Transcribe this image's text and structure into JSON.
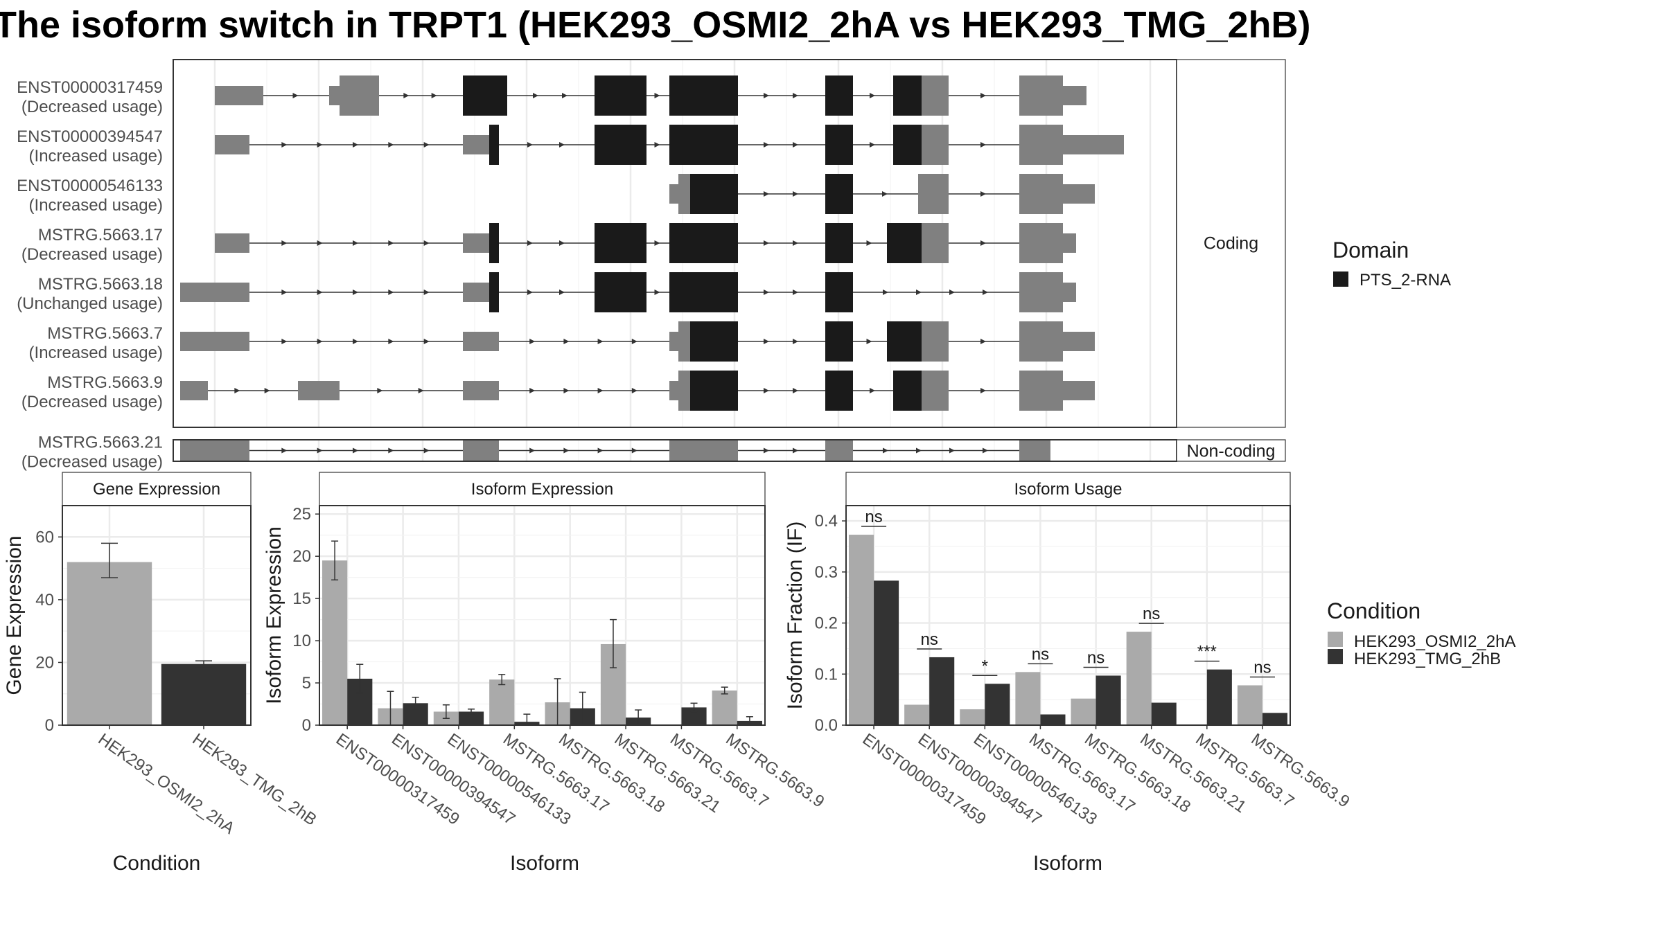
{
  "title": "The isoform switch in TRPT1 (HEK293_OSMI2_2hA vs HEK293_TMG_2hB)",
  "structure": {
    "facets": {
      "coding": "Coding",
      "noncoding": "Non-coding"
    },
    "transcripts": [
      {
        "id": "ENST00000317459",
        "usage": "(Decreased usage)",
        "group": "coding",
        "segments": [
          [
            60,
            130,
            "utr"
          ],
          [
            225,
            240,
            "utr"
          ],
          [
            240,
            297,
            "utr"
          ],
          [
            418,
            482,
            "cds"
          ],
          [
            608,
            683,
            "cds"
          ],
          [
            716,
            815,
            "cds"
          ],
          [
            941,
            981,
            "cds"
          ],
          [
            1039,
            1080,
            "cds"
          ],
          [
            1080,
            1119,
            "utr"
          ],
          [
            1221,
            1284,
            "utr"
          ],
          [
            1284,
            1318,
            "utrs"
          ]
        ]
      },
      {
        "id": "ENST00000394547",
        "usage": "(Increased usage)",
        "group": "coding",
        "segments": [
          [
            60,
            110,
            "utr"
          ],
          [
            418,
            456,
            "utr"
          ],
          [
            456,
            470,
            "cds"
          ],
          [
            608,
            683,
            "cds"
          ],
          [
            716,
            815,
            "cds"
          ],
          [
            941,
            981,
            "cds"
          ],
          [
            1039,
            1080,
            "cds"
          ],
          [
            1080,
            1119,
            "utr"
          ],
          [
            1221,
            1284,
            "utr"
          ],
          [
            1284,
            1372,
            "utrs"
          ]
        ]
      },
      {
        "id": "ENST00000546133",
        "usage": "(Increased usage)",
        "group": "coding",
        "segments": [
          [
            716,
            729,
            "utrs"
          ],
          [
            729,
            746,
            "utr"
          ],
          [
            746,
            815,
            "cds"
          ],
          [
            941,
            981,
            "cds"
          ],
          [
            1075,
            1119,
            "utr"
          ],
          [
            1221,
            1284,
            "utr"
          ],
          [
            1284,
            1330,
            "utrs"
          ]
        ]
      },
      {
        "id": "MSTRG.5663.17",
        "usage": "(Decreased usage)",
        "group": "coding",
        "segments": [
          [
            60,
            110,
            "utr"
          ],
          [
            418,
            456,
            "utr"
          ],
          [
            456,
            470,
            "cds"
          ],
          [
            608,
            683,
            "cds"
          ],
          [
            716,
            815,
            "cds"
          ],
          [
            941,
            981,
            "cds"
          ],
          [
            1030,
            1080,
            "cds"
          ],
          [
            1080,
            1119,
            "utr"
          ],
          [
            1221,
            1284,
            "utr"
          ],
          [
            1284,
            1303,
            "utrs"
          ]
        ]
      },
      {
        "id": "MSTRG.5663.18",
        "usage": "(Unchanged usage)",
        "group": "coding",
        "segments": [
          [
            10,
            110,
            "utr"
          ],
          [
            418,
            456,
            "utr"
          ],
          [
            456,
            470,
            "cds"
          ],
          [
            608,
            683,
            "cds"
          ],
          [
            716,
            815,
            "cds"
          ],
          [
            941,
            981,
            "cds"
          ],
          [
            1221,
            1284,
            "utr"
          ],
          [
            1284,
            1303,
            "utrs"
          ]
        ]
      },
      {
        "id": "MSTRG.5663.7",
        "usage": "(Increased usage)",
        "group": "coding",
        "segments": [
          [
            10,
            110,
            "utr"
          ],
          [
            418,
            470,
            "utr"
          ],
          [
            716,
            729,
            "utrs"
          ],
          [
            729,
            746,
            "utr"
          ],
          [
            746,
            815,
            "cds"
          ],
          [
            941,
            981,
            "cds"
          ],
          [
            1030,
            1080,
            "cds"
          ],
          [
            1080,
            1119,
            "utr"
          ],
          [
            1221,
            1284,
            "utr"
          ],
          [
            1284,
            1330,
            "utrs"
          ]
        ]
      },
      {
        "id": "MSTRG.5663.9",
        "usage": "(Decreased usage)",
        "group": "coding",
        "segments": [
          [
            10,
            50,
            "utr"
          ],
          [
            180,
            240,
            "utr"
          ],
          [
            418,
            470,
            "utr"
          ],
          [
            716,
            729,
            "utrs"
          ],
          [
            729,
            746,
            "utr"
          ],
          [
            746,
            815,
            "cds"
          ],
          [
            941,
            981,
            "cds"
          ],
          [
            1039,
            1080,
            "cds"
          ],
          [
            1080,
            1119,
            "utr"
          ],
          [
            1221,
            1284,
            "utr"
          ],
          [
            1284,
            1330,
            "utrs"
          ]
        ]
      },
      {
        "id": "MSTRG.5663.21",
        "usage": "(Decreased usage)",
        "group": "noncoding",
        "segments": [
          [
            10,
            110,
            "nc"
          ],
          [
            418,
            470,
            "nc"
          ],
          [
            716,
            815,
            "nc"
          ],
          [
            941,
            981,
            "nc"
          ],
          [
            1221,
            1266,
            "nc"
          ]
        ]
      }
    ]
  },
  "legend_domain": {
    "title": "Domain",
    "items": [
      {
        "label": "PTS_2-RNA",
        "color": "#1a1a1a"
      }
    ]
  },
  "legend_condition": {
    "title": "Condition",
    "items": [
      {
        "label": "HEK293_OSMI2_2hA",
        "color": "#aaaaaa"
      },
      {
        "label": "HEK293_TMG_2hB",
        "color": "#333333"
      }
    ]
  },
  "colors": {
    "utr": "#808080",
    "cds": "#1a1a1a",
    "noncoding": "#808080",
    "cond_a": "#aaaaaa",
    "cond_b": "#333333"
  },
  "chart_data": [
    {
      "type": "bar",
      "title": "Gene Expression",
      "xlabel": "Condition",
      "ylabel": "Gene Expression",
      "categories": [
        "HEK293_OSMI2_2hA",
        "HEK293_TMG_2hB"
      ],
      "values": [
        52,
        19.5
      ],
      "errors": [
        [
          47,
          58
        ],
        [
          18.7,
          20.5
        ]
      ],
      "ylim": [
        0,
        70
      ],
      "yticks": [
        0,
        20,
        40,
        60
      ],
      "grid": true
    },
    {
      "type": "bar",
      "title": "Isoform Expression",
      "xlabel": "Isoform",
      "ylabel": "Isoform Expression",
      "categories": [
        "ENST00000317459",
        "ENST00000394547",
        "ENST00000546133",
        "MSTRG.5663.17",
        "MSTRG.5663.18",
        "MSTRG.5663.21",
        "MSTRG.5663.7",
        "MSTRG.5663.9"
      ],
      "series": [
        {
          "name": "HEK293_OSMI2_2hA",
          "values": [
            19.5,
            2.0,
            1.6,
            5.4,
            2.7,
            9.6,
            0,
            4.1
          ],
          "errors": [
            [
              17.2,
              21.8
            ],
            [
              0,
              4.0
            ],
            [
              0.8,
              2.4
            ],
            [
              4.8,
              6.0
            ],
            [
              0,
              5.5
            ],
            [
              6.8,
              12.5
            ],
            [
              0,
              0
            ],
            [
              3.7,
              4.5
            ]
          ]
        },
        {
          "name": "HEK293_TMG_2hB",
          "values": [
            5.5,
            2.6,
            1.6,
            0.4,
            2.0,
            0.9,
            2.1,
            0.5
          ],
          "errors": [
            [
              3.8,
              7.2
            ],
            [
              1.9,
              3.3
            ],
            [
              1.3,
              1.9
            ],
            [
              0,
              1.3
            ],
            [
              0,
              3.9
            ],
            [
              0,
              1.8
            ],
            [
              1.6,
              2.6
            ],
            [
              0,
              1.0
            ]
          ]
        }
      ],
      "ylim": [
        0,
        26
      ],
      "yticks": [
        0,
        5,
        10,
        15,
        20,
        25
      ],
      "grid": true
    },
    {
      "type": "bar",
      "title": "Isoform Usage",
      "xlabel": "Isoform",
      "ylabel": "Isoform Fraction (IF)",
      "categories": [
        "ENST00000317459",
        "ENST00000394547",
        "ENST00000546133",
        "MSTRG.5663.17",
        "MSTRG.5663.18",
        "MSTRG.5663.21",
        "MSTRG.5663.7",
        "MSTRG.5663.9"
      ],
      "series": [
        {
          "name": "HEK293_OSMI2_2hA",
          "values": [
            0.373,
            0.04,
            0.031,
            0.104,
            0.052,
            0.183,
            0.0,
            0.078
          ]
        },
        {
          "name": "HEK293_TMG_2hB",
          "values": [
            0.283,
            0.133,
            0.081,
            0.021,
            0.097,
            0.044,
            0.109,
            0.024
          ]
        }
      ],
      "significance": [
        "ns",
        "ns",
        "*",
        "ns",
        "ns",
        "ns",
        "***",
        "ns"
      ],
      "ylim": [
        0,
        0.43
      ],
      "yticks": [
        0.0,
        0.1,
        0.2,
        0.3,
        0.4
      ],
      "ytick_labels": [
        "0.0",
        "0.1",
        "0.2",
        "0.3",
        "0.4"
      ],
      "grid": true
    }
  ]
}
